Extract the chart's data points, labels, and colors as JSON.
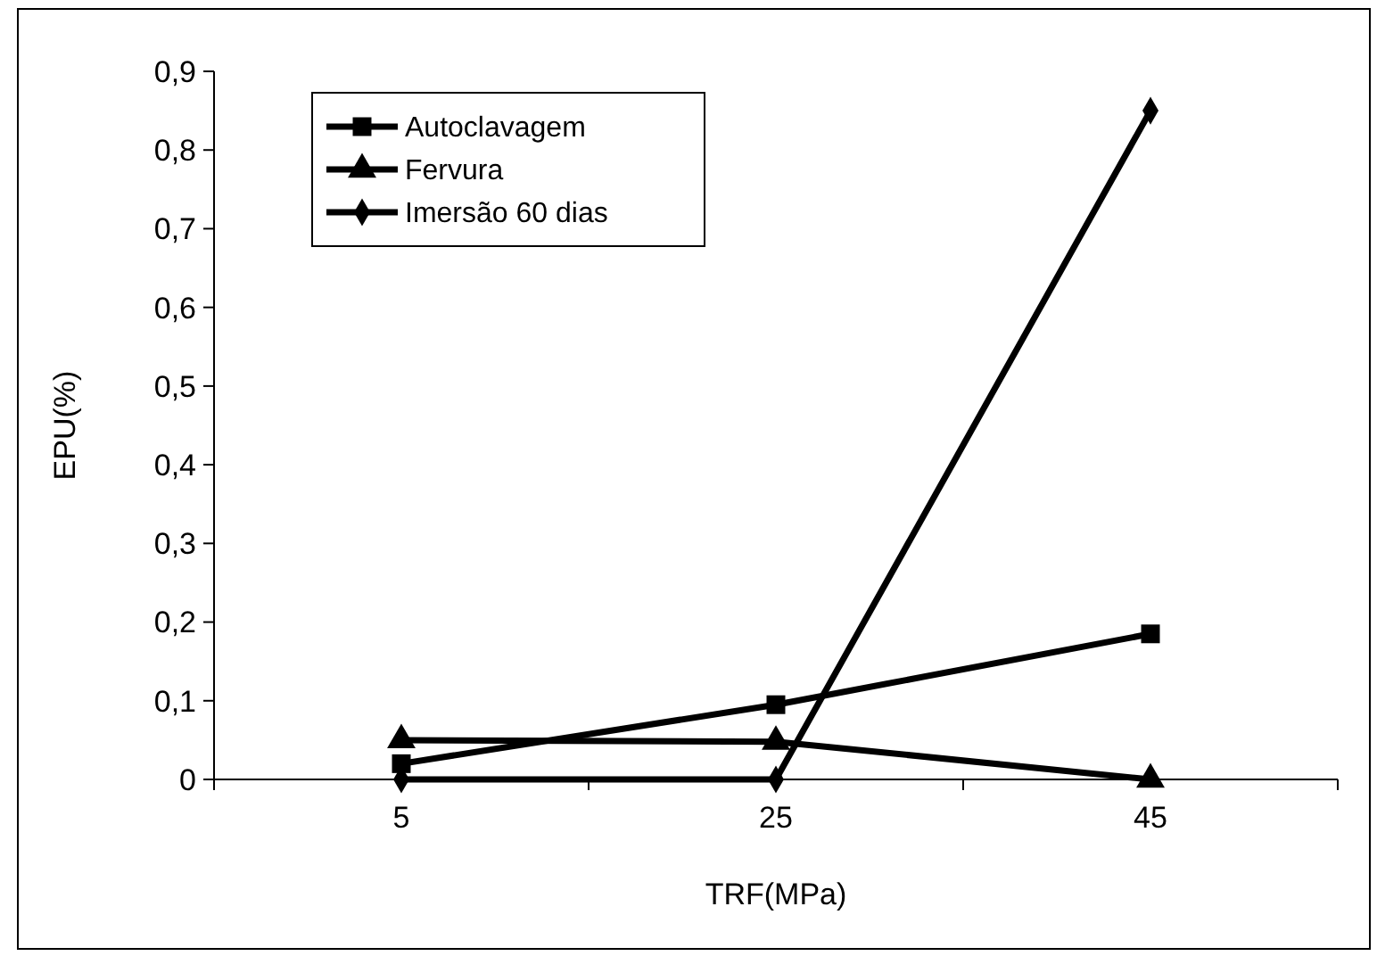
{
  "chart_data": {
    "type": "line",
    "xlabel": "TRF(MPa)",
    "ylabel": "EPU(%)",
    "categories": [
      "5",
      "25",
      "45"
    ],
    "ylim": [
      0,
      0.9
    ],
    "yticks": [
      {
        "value": 0,
        "label": "0"
      },
      {
        "value": 0.1,
        "label": "0,1"
      },
      {
        "value": 0.2,
        "label": "0,2"
      },
      {
        "value": 0.3,
        "label": "0,3"
      },
      {
        "value": 0.4,
        "label": "0,4"
      },
      {
        "value": 0.5,
        "label": "0,5"
      },
      {
        "value": 0.6,
        "label": "0,6"
      },
      {
        "value": 0.7,
        "label": "0,7"
      },
      {
        "value": 0.8,
        "label": "0,8"
      },
      {
        "value": 0.9,
        "label": "0,9"
      }
    ],
    "grid": false,
    "legend": "top left",
    "line_style": "solid",
    "series": [
      {
        "name": "Autoclavagem",
        "color": "#000000",
        "marker": "square",
        "values": [
          0.02,
          0.095,
          0.185
        ]
      },
      {
        "name": "Fervura",
        "color": "#000000",
        "marker": "triangle",
        "values": [
          0.05,
          0.048,
          0
        ]
      },
      {
        "name": "Imersão 60 dias",
        "color": "#000000",
        "marker": "diamond",
        "values": [
          0,
          0,
          0.85
        ]
      }
    ]
  }
}
